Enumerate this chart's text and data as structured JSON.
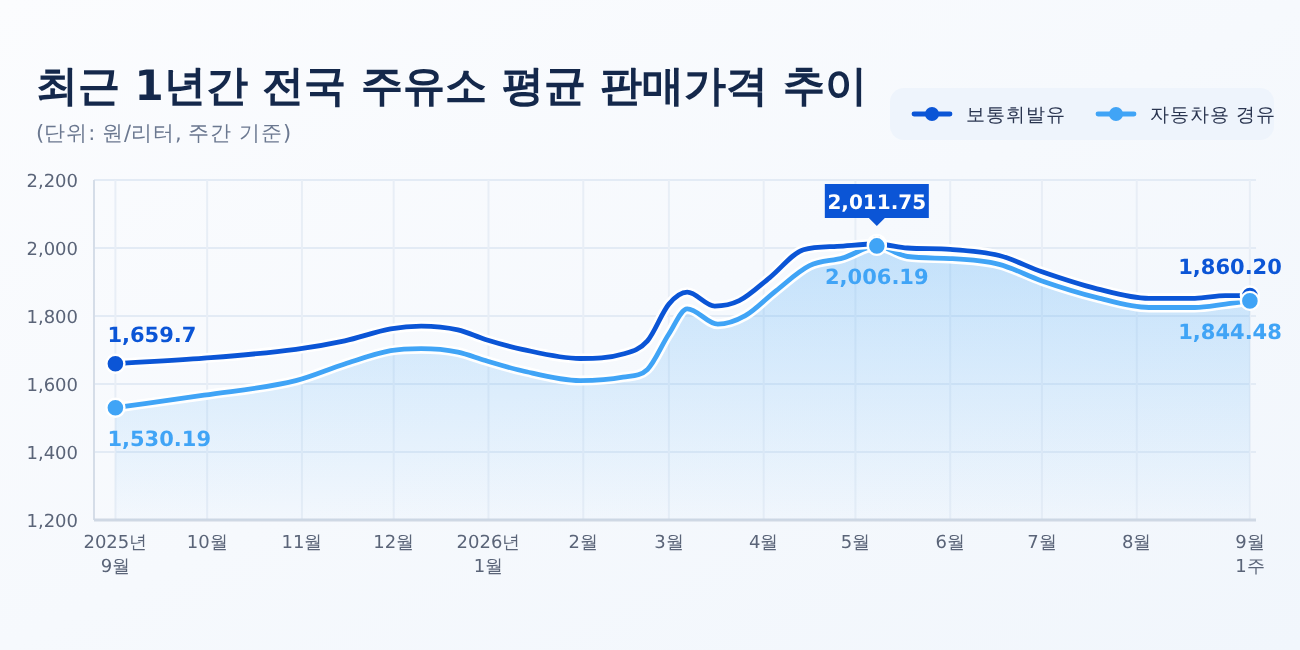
{
  "chart_data": {
    "type": "line",
    "title": "최근 1년간 전국 주유소 평균 판매가격 추이",
    "subtitle": "(단위: 원/리터, 주간 기준)",
    "xlim": [
      "2025-08-25",
      "2026-09-09"
    ],
    "ylim": [
      1200,
      2200
    ],
    "xticks": [
      {
        "value": "2025-09-01",
        "label": "2025년 9월"
      },
      {
        "value": "2025-10-01",
        "label": "10월"
      },
      {
        "value": "2025-11-01",
        "label": "11월"
      },
      {
        "value": "2025-12-01",
        "label": "12월"
      },
      {
        "value": "2026-01-01",
        "label": "2026년 1월"
      },
      {
        "value": "2026-02-01",
        "label": "2월"
      },
      {
        "value": "2026-03-01",
        "label": "3월"
      },
      {
        "value": "2026-04-01",
        "label": "4월"
      },
      {
        "value": "2026-05-01",
        "label": "5월"
      },
      {
        "value": "2026-06-01",
        "label": "6월"
      },
      {
        "value": "2026-07-01",
        "label": "7월"
      },
      {
        "value": "2026-08-01",
        "label": "8월"
      },
      {
        "value": "2026-09-07",
        "label": "9월 1주"
      }
    ],
    "yticks": [
      {
        "value": 1200,
        "label": "1,200"
      },
      {
        "value": 1400,
        "label": "1,400"
      },
      {
        "value": 1600,
        "label": "1,600"
      },
      {
        "value": 1800,
        "label": "1,800"
      },
      {
        "value": 2000,
        "label": "2,000"
      },
      {
        "value": 2200,
        "label": "2,200"
      }
    ],
    "grid": true,
    "legend": "top right",
    "series": [
      {
        "name": "보통휘발유",
        "color": "#0b55d6",
        "x": [
          "2025-09-01",
          "2025-09-30",
          "2025-10-30",
          "2025-11-15",
          "2025-11-30",
          "2025-12-10",
          "2025-12-22",
          "2025-12-31",
          "2026-01-12",
          "2026-01-31",
          "2026-02-14",
          "2026-02-22",
          "2026-03-01",
          "2026-03-07",
          "2026-03-16",
          "2026-03-24",
          "2026-04-03",
          "2026-04-14",
          "2026-04-25",
          "2026-05-08",
          "2026-05-18",
          "2026-06-01",
          "2026-06-17",
          "2026-07-01",
          "2026-07-19",
          "2026-08-05",
          "2026-08-20",
          "2026-08-30",
          "2026-09-07"
        ],
        "values": [
          1659.7,
          1676,
          1702,
          1727,
          1762,
          1770,
          1759,
          1731,
          1702,
          1675,
          1688,
          1727,
          1835,
          1870,
          1829,
          1845,
          1913,
          1995,
          2005,
          2011.75,
          2000,
          1996,
          1978,
          1930,
          1880,
          1852,
          1852,
          1860,
          1860.2
        ]
      },
      {
        "name": "자동차용 경유",
        "type": "area",
        "color": "#40a4f6",
        "x": [
          "2025-09-01",
          "2025-09-30",
          "2025-10-30",
          "2025-11-15",
          "2025-11-30",
          "2025-12-10",
          "2025-12-22",
          "2025-12-31",
          "2026-01-12",
          "2026-01-31",
          "2026-02-14",
          "2026-02-22",
          "2026-03-01",
          "2026-03-07",
          "2026-03-17",
          "2026-03-26",
          "2026-04-05",
          "2026-04-16",
          "2026-04-27",
          "2026-05-08",
          "2026-05-18",
          "2026-06-01",
          "2026-06-17",
          "2026-07-01",
          "2026-07-19",
          "2026-08-05",
          "2026-08-20",
          "2026-08-30",
          "2026-09-07"
        ],
        "values": [
          1530.19,
          1567,
          1610,
          1659,
          1698,
          1704,
          1694,
          1669,
          1639,
          1610,
          1620,
          1643,
          1747,
          1821,
          1776,
          1801,
          1874,
          1948,
          1971,
          2006.19,
          1975,
          1969,
          1952,
          1903,
          1854,
          1825,
          1825,
          1835,
          1844.48
        ]
      }
    ],
    "annotations": [
      {
        "text": "1,659.7",
        "x": "2025-09-01",
        "y": 1659.7
      },
      {
        "text": "1,530.19",
        "x": "2025-09-01",
        "y": 1530.19
      },
      {
        "text": "2,011.75",
        "x": "2026-05-08",
        "y": 2011.75
      },
      {
        "text": "2,006.19",
        "x": "2026-05-08",
        "y": 2006.19
      },
      {
        "text": "1,860.20",
        "x": "2026-09-07",
        "y": 1860.2
      },
      {
        "text": "1,844.48",
        "x": "2026-09-07",
        "y": 1844.48
      }
    ]
  }
}
